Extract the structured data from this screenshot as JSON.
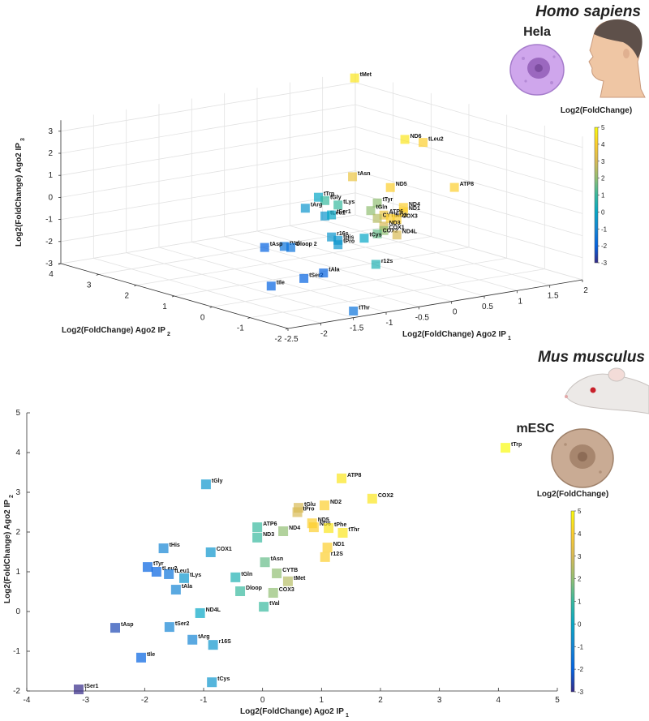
{
  "chart_data": [
    {
      "type": "scatter3d",
      "organism": "Homo sapiens",
      "cell_line": "Hela",
      "xlabel": "Log2(FoldChange) Ago2 IP",
      "xlabel_sub": "1",
      "ylabel": "Log2(FoldChange) Ago2 IP",
      "ylabel_sub": "2",
      "zlabel": "Log2(FoldChange) Ago2 IP",
      "zlabel_sub": "3",
      "xlim": [
        -2.5,
        2
      ],
      "ylim": [
        -2,
        4
      ],
      "zlim": [
        -3,
        3.5
      ],
      "xticks": [
        -2.5,
        -2,
        -1.5,
        -1,
        -0.5,
        0,
        0.5,
        1,
        1.5,
        2
      ],
      "yticks": [
        -2,
        -1,
        0,
        1,
        2,
        3,
        4
      ],
      "zticks": [
        -3,
        -2,
        -1,
        0,
        1,
        2,
        3
      ],
      "grid": true,
      "labels": [
        "tMet",
        "ND6",
        "tLeu2",
        "tAsn",
        "ND5",
        "ATP8",
        "tTrp",
        "tGly",
        "tArg",
        "tLys",
        "tLeu1",
        "tSer1",
        "tTyr",
        "tGln",
        "ND4",
        "ND1",
        "ATP6",
        "CYTB",
        "ND2",
        "COX3",
        "ND3",
        "COX1",
        "COX2",
        "ND4L",
        "tHis",
        "tPro",
        "r16s",
        "tCys",
        "tVal",
        "Dloop 2",
        "tAsp",
        "r12s",
        "tSer2",
        "tAla",
        "tIle",
        "tThr"
      ],
      "x": [
        1.7,
        1.6,
        1.3,
        0.8,
        0.8,
        1.2,
        -0.3,
        -0.2,
        -0.5,
        0,
        -0.2,
        -0.1,
        0.6,
        0.5,
        1,
        1,
        0.7,
        0.6,
        0.8,
        0.9,
        0.7,
        0.7,
        0.6,
        0.9,
        0,
        0,
        -0.1,
        0.4,
        -1.4,
        -1.3,
        -1.7,
        0,
        -1.1,
        -0.8,
        -1.6,
        -1.5
      ],
      "y": [
        3.5,
        2,
        1,
        2,
        1,
        0,
        1,
        1,
        1,
        1,
        1,
        1,
        1,
        1,
        1,
        1,
        1,
        1,
        1,
        1,
        1,
        1,
        1,
        1,
        1,
        1,
        1,
        1,
        0,
        0,
        0,
        0,
        0,
        0,
        0,
        -2
      ],
      "z": [
        3.6,
        1.6,
        2.1,
        0.3,
        0.3,
        0.6,
        0.4,
        0.2,
        0,
        -0.1,
        -0.5,
        -0.5,
        -0.3,
        -0.6,
        -0.7,
        -0.9,
        -0.9,
        -1,
        -1.1,
        -1.2,
        -1.4,
        -1.6,
        -1.7,
        -1.9,
        -1.7,
        -1.9,
        -1.5,
        -1.8,
        -0.8,
        -0.9,
        -0.7,
        -2.3,
        -2.4,
        -2.3,
        -2.5,
        -2.7
      ],
      "color_values": [
        4.5,
        4.5,
        4,
        3.5,
        4,
        4,
        0,
        1,
        -0.5,
        1,
        -0.5,
        0,
        2,
        2,
        4,
        4,
        3.5,
        2.5,
        4,
        4,
        3,
        2,
        1.5,
        3,
        -0.5,
        -0.5,
        -0.5,
        0,
        -1.5,
        -1.5,
        -2,
        0.5,
        -2,
        -2,
        -2,
        -1.5
      ],
      "colormap": [
        "#352a87",
        "#0363e1",
        "#1485d4",
        "#06a7c6",
        "#38b99e",
        "#92bf73",
        "#d9ba56",
        "#fcce2e",
        "#f9fb0e"
      ],
      "colorbar": {
        "title": "Log2(FoldChange)",
        "clim": [
          -3,
          5
        ],
        "ticks": [
          -3,
          -2,
          -1,
          0,
          1,
          2,
          3,
          4,
          5
        ]
      }
    },
    {
      "type": "scatter",
      "organism": "Mus musculus",
      "cell_line": "mESC",
      "xlabel": "Log2(FoldChange) Ago2 IP",
      "xlabel_sub": "1",
      "ylabel": "Log2(FoldChange) Ago2 IP",
      "ylabel_sub": "2",
      "xlim": [
        -4,
        5
      ],
      "ylim": [
        -2,
        5
      ],
      "xticks": [
        -4,
        -3,
        -2,
        -1,
        0,
        1,
        2,
        3,
        4,
        5
      ],
      "yticks": [
        -2,
        -1,
        0,
        1,
        2,
        3,
        4,
        5
      ],
      "labels": [
        "tTrp",
        "tGly",
        "ATP8",
        "COX2",
        "ND2",
        "tGlu",
        "tPro",
        "ND5",
        "ND6",
        "tPhe",
        "tThr",
        "ATP6",
        "ND3",
        "ND4",
        "ND1",
        "r12S",
        "tHis",
        "COX1",
        "tAsn",
        "CYTB",
        "tMet",
        "tTyr",
        "tLeu2",
        "tLeu1",
        "tLys",
        "tGln",
        "tAla",
        "Dloop",
        "COX3",
        "ND4L",
        "tVal",
        "tAsp",
        "tSer2",
        "tArg",
        "r16S",
        "tIle",
        "tCys",
        "tSer1"
      ],
      "x": [
        4.12,
        -0.96,
        1.34,
        1.86,
        1.05,
        0.61,
        0.59,
        0.84,
        0.87,
        1.12,
        1.36,
        -0.09,
        -0.09,
        0.35,
        1.1,
        1.06,
        -1.68,
        -0.88,
        0.04,
        0.24,
        0.43,
        -1.95,
        -1.8,
        -1.59,
        -1.33,
        -0.46,
        -1.47,
        -0.38,
        0.18,
        -1.06,
        0.02,
        -2.5,
        -1.58,
        -1.19,
        -0.84,
        -2.06,
        -0.86,
        -3.12
      ],
      "y": [
        4.12,
        3.2,
        3.35,
        2.84,
        2.67,
        2.61,
        2.5,
        2.22,
        2.12,
        2.1,
        1.98,
        2.12,
        1.86,
        2.02,
        1.61,
        1.37,
        1.59,
        1.49,
        1.24,
        0.96,
        0.76,
        1.12,
        1.0,
        0.94,
        0.84,
        0.86,
        0.55,
        0.51,
        0.47,
        -0.04,
        0.12,
        -0.41,
        -0.39,
        -0.71,
        -0.84,
        -1.16,
        -1.78,
        -1.96
      ],
      "color_values": [
        5,
        -0.5,
        4.5,
        4.5,
        4,
        3,
        3,
        4,
        4,
        4.5,
        4.5,
        1,
        1,
        2,
        4,
        4,
        -1,
        -0.5,
        1.5,
        2,
        2.5,
        -2,
        -2,
        -1.5,
        -0.5,
        0.5,
        -1,
        1,
        2,
        0,
        1,
        -2.5,
        -1,
        -1,
        -0.5,
        -2,
        -0.5,
        -3
      ],
      "colormap": [
        "#352a87",
        "#0363e1",
        "#1485d4",
        "#06a7c6",
        "#38b99e",
        "#92bf73",
        "#d9ba56",
        "#fcce2e",
        "#f9fb0e"
      ],
      "colorbar": {
        "title": "Log2(FoldChange)",
        "clim": [
          -3,
          5
        ],
        "ticks": [
          -3,
          -2,
          -1,
          0,
          1,
          2,
          3,
          4,
          5
        ]
      }
    }
  ]
}
